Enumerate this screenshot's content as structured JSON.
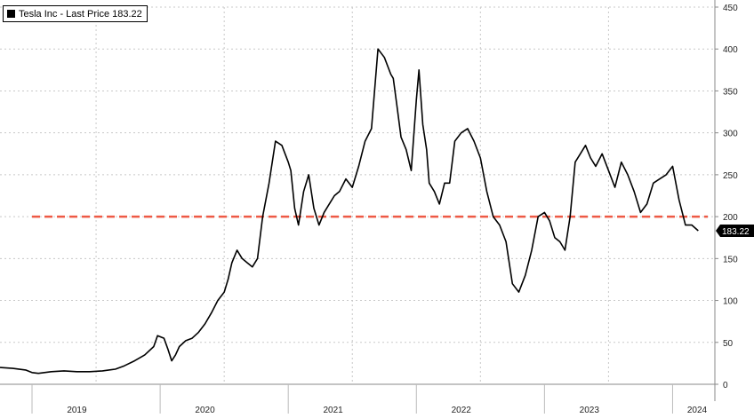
{
  "legend": {
    "label": "Tesla Inc - Last Price 183.22",
    "color": "#000000"
  },
  "chart_data": {
    "type": "line",
    "title": "",
    "xlabel": "",
    "ylabel": "",
    "ylim": [
      0,
      450
    ],
    "yticks": [
      0,
      50,
      100,
      150,
      200,
      250,
      300,
      350,
      400,
      450
    ],
    "x_tick_labels": [
      "2019",
      "2020",
      "2021",
      "2022",
      "2023",
      "2024"
    ],
    "x_range": [
      2018.75,
      2024.33
    ],
    "grid": true,
    "legend_position": "top-left",
    "last_price": {
      "value": 183.22,
      "label": "183.22"
    },
    "reference_line": {
      "value": 200,
      "color": "#ee5a45",
      "style": "dashed"
    },
    "series": [
      {
        "name": "Tesla Inc - Last Price",
        "color": "#000000",
        "x": [
          2018.75,
          2018.85,
          2018.95,
          2019.0,
          2019.05,
          2019.15,
          2019.25,
          2019.35,
          2019.45,
          2019.55,
          2019.65,
          2019.72,
          2019.8,
          2019.88,
          2019.95,
          2019.98,
          2020.03,
          2020.06,
          2020.09,
          2020.12,
          2020.15,
          2020.2,
          2020.25,
          2020.3,
          2020.35,
          2020.4,
          2020.45,
          2020.5,
          2020.53,
          2020.56,
          2020.6,
          2020.64,
          2020.68,
          2020.72,
          2020.76,
          2020.8,
          2020.85,
          2020.9,
          2020.95,
          2021.0,
          2021.02,
          2021.05,
          2021.08,
          2021.12,
          2021.16,
          2021.2,
          2021.24,
          2021.28,
          2021.32,
          2021.36,
          2021.4,
          2021.45,
          2021.5,
          2021.55,
          2021.6,
          2021.65,
          2021.7,
          2021.75,
          2021.8,
          2021.82,
          2021.85,
          2021.88,
          2021.92,
          2021.96,
          2022.0,
          2022.02,
          2022.05,
          2022.08,
          2022.1,
          2022.14,
          2022.18,
          2022.22,
          2022.26,
          2022.3,
          2022.35,
          2022.4,
          2022.45,
          2022.5,
          2022.55,
          2022.6,
          2022.65,
          2022.7,
          2022.75,
          2022.8,
          2022.85,
          2022.9,
          2022.95,
          2023.0,
          2023.04,
          2023.08,
          2023.12,
          2023.16,
          2023.2,
          2023.24,
          2023.28,
          2023.32,
          2023.36,
          2023.4,
          2023.45,
          2023.5,
          2023.55,
          2023.6,
          2023.65,
          2023.7,
          2023.75,
          2023.8,
          2023.85,
          2023.9,
          2023.95,
          2024.0,
          2024.05,
          2024.1,
          2024.15,
          2024.2
        ],
        "y": [
          20,
          19,
          17,
          14,
          13,
          15,
          16,
          15,
          15,
          16,
          18,
          22,
          28,
          35,
          45,
          58,
          55,
          42,
          28,
          35,
          45,
          52,
          55,
          62,
          72,
          85,
          100,
          110,
          125,
          145,
          160,
          150,
          145,
          140,
          150,
          200,
          240,
          290,
          285,
          265,
          255,
          210,
          190,
          230,
          250,
          210,
          190,
          205,
          215,
          225,
          230,
          245,
          235,
          260,
          290,
          305,
          400,
          390,
          370,
          365,
          330,
          295,
          280,
          255,
          340,
          375,
          310,
          280,
          240,
          230,
          215,
          240,
          240,
          290,
          300,
          305,
          290,
          270,
          230,
          200,
          190,
          170,
          120,
          110,
          130,
          160,
          200,
          205,
          195,
          175,
          170,
          160,
          200,
          265,
          275,
          285,
          270,
          260,
          275,
          255,
          235,
          265,
          250,
          230,
          205,
          215,
          240,
          245,
          250,
          260,
          220,
          190,
          190,
          183.22
        ]
      }
    ]
  }
}
